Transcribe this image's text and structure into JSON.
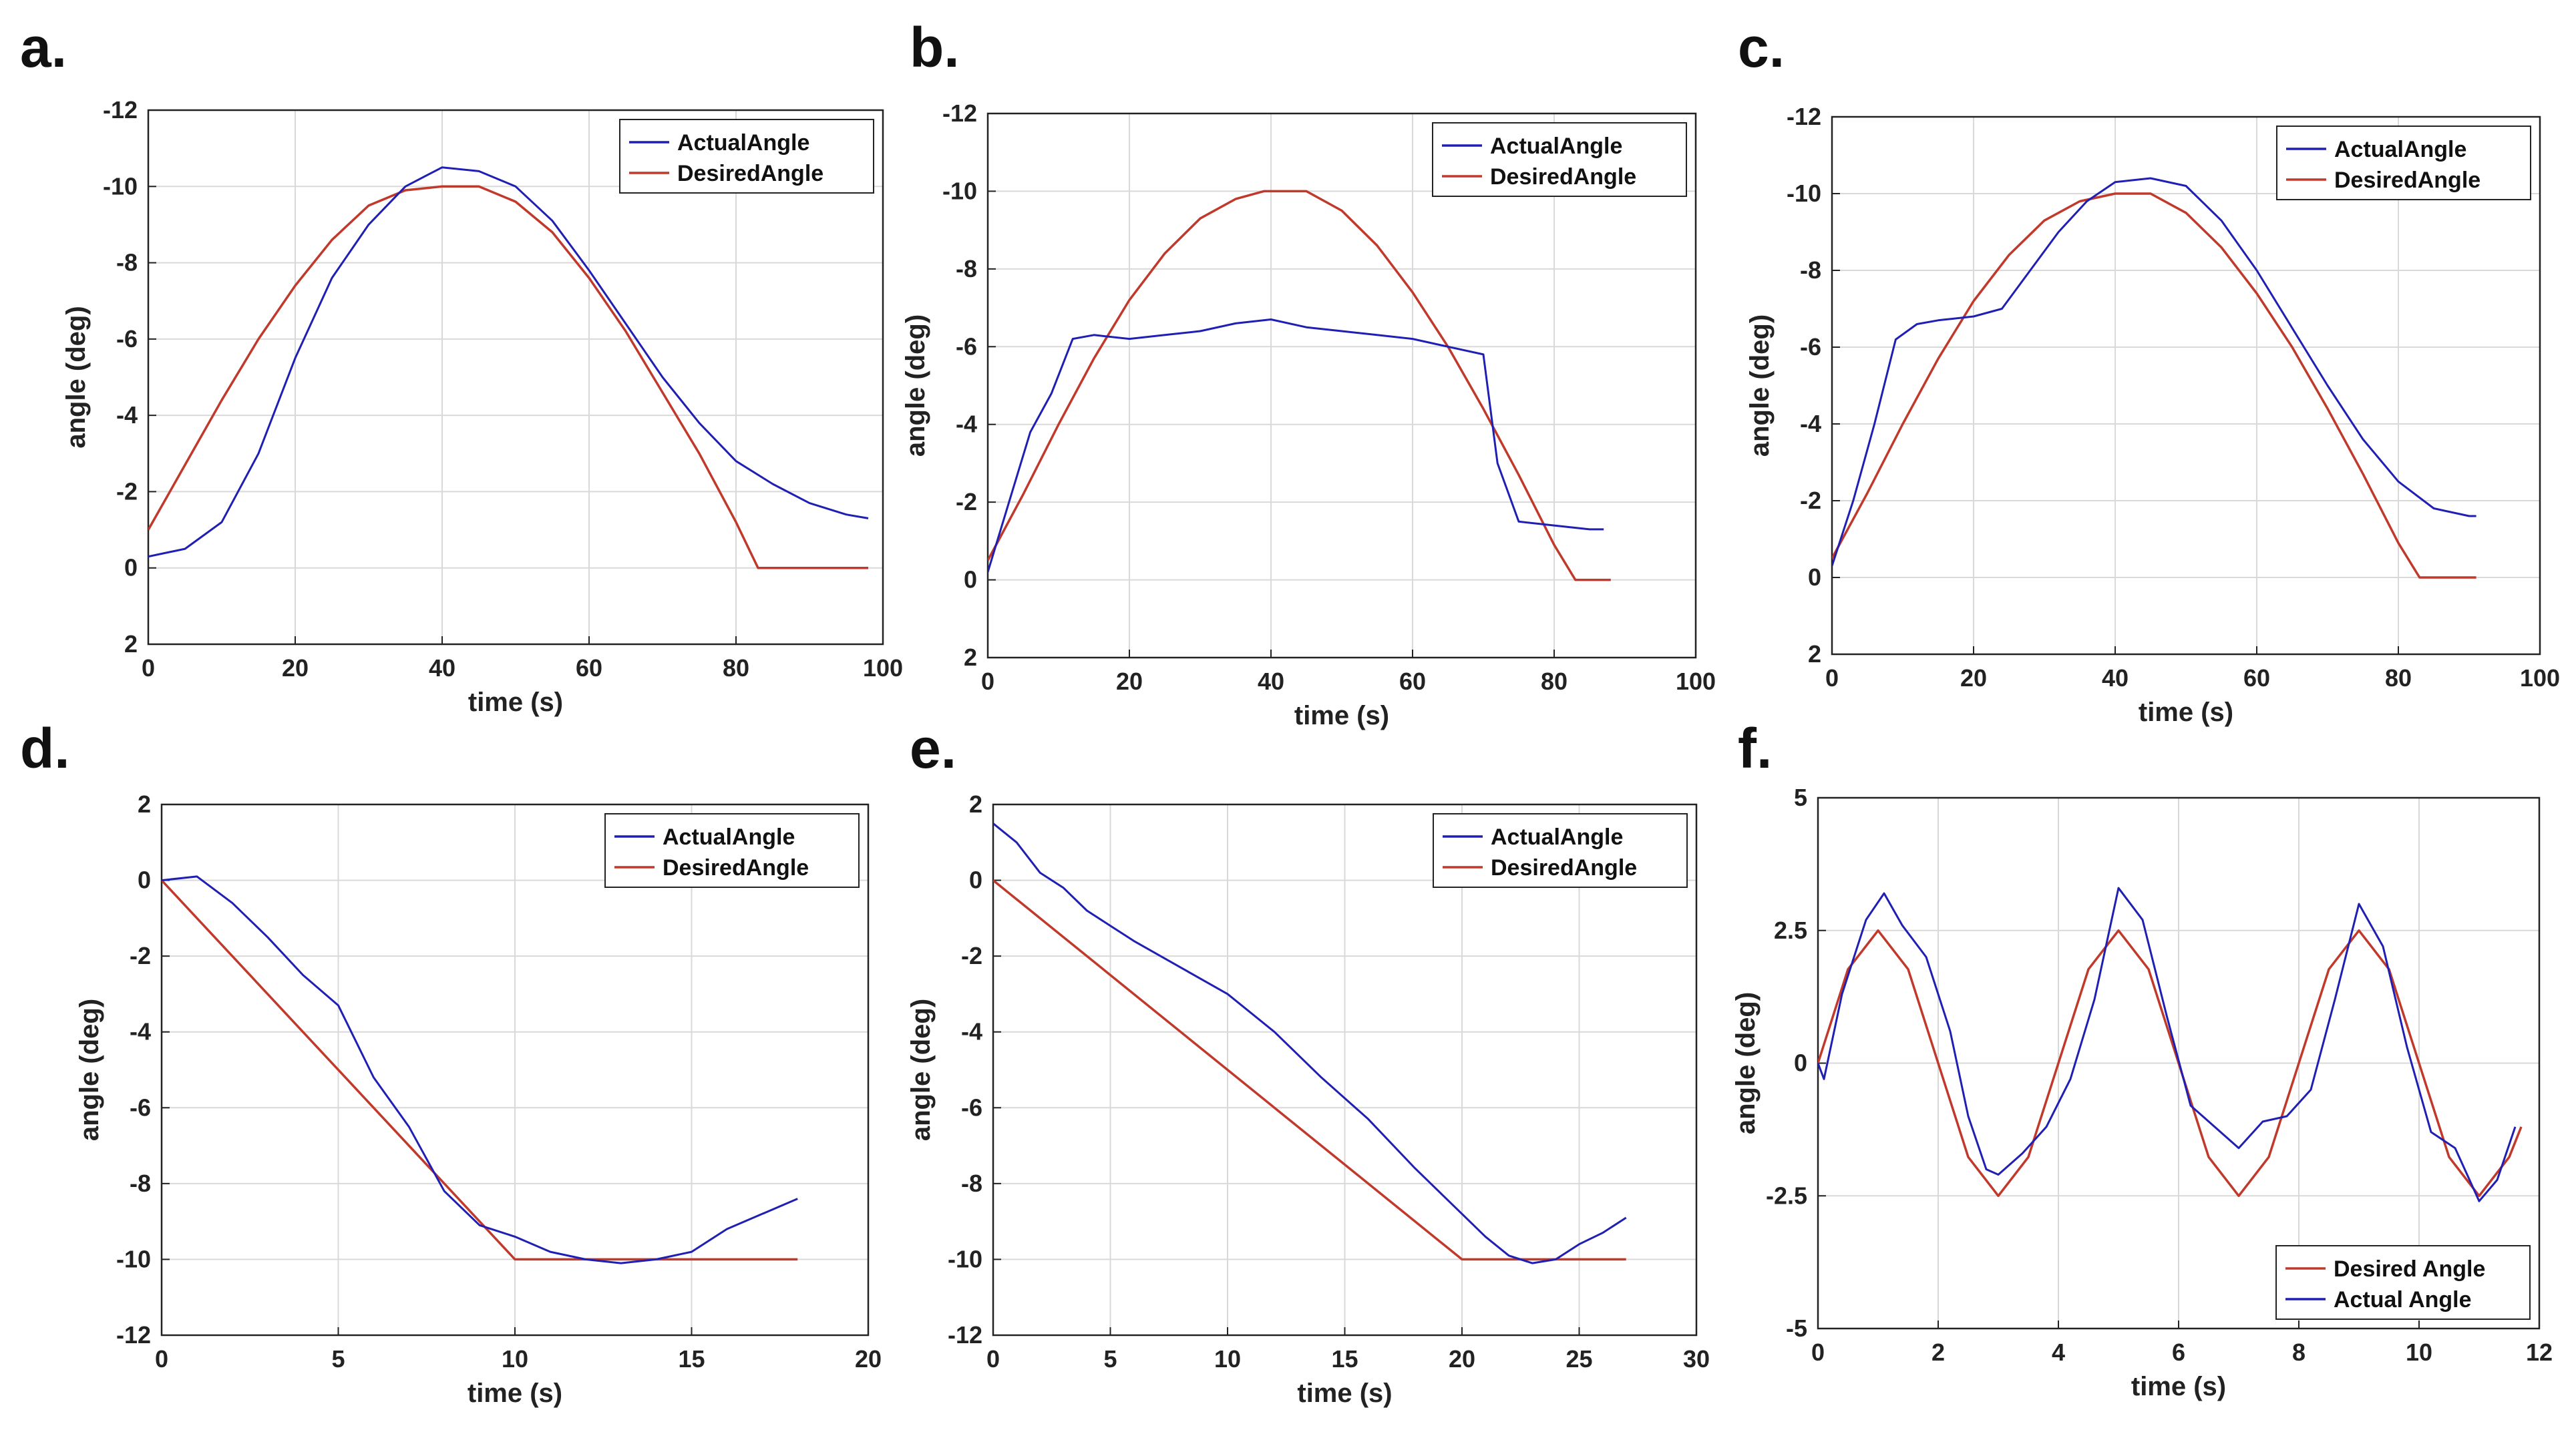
{
  "figure": {
    "colors": {
      "actual": "#1f1fb4",
      "desired": "#c0392b",
      "grid": "#d9d9d9",
      "axis": "#222222"
    }
  },
  "chart_data": [
    {
      "panel": "a.",
      "type": "line",
      "xlabel": "time (s)",
      "ylabel": "angle (deg)",
      "xlim": [
        0,
        100
      ],
      "ylim": [
        -12,
        2
      ],
      "yreversed": true,
      "xticks": [
        0,
        20,
        40,
        60,
        80,
        100
      ],
      "yticks": [
        -12,
        -10,
        -8,
        -6,
        -4,
        -2,
        0,
        2
      ],
      "grid": true,
      "legend_position": "top-right",
      "series": [
        {
          "name": "ActualAngle",
          "role": "actual",
          "x": [
            0,
            5,
            10,
            15,
            20,
            25,
            30,
            35,
            40,
            45,
            50,
            55,
            60,
            65,
            70,
            75,
            80,
            85,
            90,
            95,
            98
          ],
          "y": [
            -0.3,
            -0.5,
            -1.2,
            -3.0,
            -5.5,
            -7.6,
            -9.0,
            -10.0,
            -10.5,
            -10.4,
            -10.0,
            -9.1,
            -7.8,
            -6.4,
            -5.0,
            -3.8,
            -2.8,
            -2.2,
            -1.7,
            -1.4,
            -1.3
          ]
        },
        {
          "name": "DesiredAngle",
          "role": "desired",
          "x": [
            0,
            5,
            10,
            15,
            20,
            25,
            30,
            35,
            40,
            45,
            50,
            55,
            60,
            65,
            70,
            75,
            80,
            83,
            98
          ],
          "y": [
            -1.0,
            -2.7,
            -4.4,
            -6.0,
            -7.4,
            -8.6,
            -9.5,
            -9.9,
            -10.0,
            -10.0,
            -9.6,
            -8.8,
            -7.6,
            -6.2,
            -4.6,
            -3.0,
            -1.2,
            0,
            0
          ]
        }
      ]
    },
    {
      "panel": "b.",
      "type": "line",
      "xlabel": "time (s)",
      "ylabel": "angle (deg)",
      "xlim": [
        0,
        100
      ],
      "ylim": [
        -12,
        2
      ],
      "yreversed": true,
      "xticks": [
        0,
        20,
        40,
        60,
        80,
        100
      ],
      "yticks": [
        -12,
        -10,
        -8,
        -6,
        -4,
        -2,
        0,
        2
      ],
      "grid": true,
      "legend_position": "top-right",
      "series": [
        {
          "name": "ActualAngle",
          "role": "actual",
          "x": [
            0,
            3,
            6,
            9,
            12,
            15,
            20,
            25,
            30,
            35,
            40,
            45,
            50,
            55,
            60,
            65,
            70,
            72,
            75,
            80,
            85,
            87
          ],
          "y": [
            -0.2,
            -2.0,
            -3.8,
            -4.8,
            -6.2,
            -6.3,
            -6.2,
            -6.3,
            -6.4,
            -6.6,
            -6.7,
            -6.5,
            -6.4,
            -6.3,
            -6.2,
            -6.0,
            -5.8,
            -3.0,
            -1.5,
            -1.4,
            -1.3,
            -1.3
          ]
        },
        {
          "name": "DesiredAngle",
          "role": "desired",
          "x": [
            0,
            5,
            10,
            15,
            20,
            25,
            30,
            35,
            39,
            45,
            50,
            55,
            60,
            65,
            70,
            75,
            80,
            83,
            88
          ],
          "y": [
            -0.5,
            -2.2,
            -4.0,
            -5.7,
            -7.2,
            -8.4,
            -9.3,
            -9.8,
            -10.0,
            -10.0,
            -9.5,
            -8.6,
            -7.4,
            -6.0,
            -4.4,
            -2.7,
            -0.9,
            0,
            0
          ]
        }
      ]
    },
    {
      "panel": "c.",
      "type": "line",
      "xlabel": "time (s)",
      "ylabel": "angle (deg)",
      "xlim": [
        0,
        100
      ],
      "ylim": [
        -12,
        2
      ],
      "yreversed": true,
      "xticks": [
        0,
        20,
        40,
        60,
        80,
        100
      ],
      "yticks": [
        -12,
        -10,
        -8,
        -6,
        -4,
        -2,
        0,
        2
      ],
      "grid": true,
      "legend_position": "top-right",
      "series": [
        {
          "name": "ActualAngle",
          "role": "actual",
          "x": [
            0,
            3,
            6,
            9,
            12,
            15,
            20,
            24,
            28,
            32,
            36,
            40,
            45,
            50,
            55,
            60,
            65,
            70,
            75,
            80,
            85,
            90,
            91
          ],
          "y": [
            -0.3,
            -2.0,
            -4.0,
            -6.2,
            -6.6,
            -6.7,
            -6.8,
            -7.0,
            -8.0,
            -9.0,
            -9.8,
            -10.3,
            -10.4,
            -10.2,
            -9.3,
            -8.0,
            -6.5,
            -5.0,
            -3.6,
            -2.5,
            -1.8,
            -1.6,
            -1.6
          ]
        },
        {
          "name": "DesiredAngle",
          "role": "desired",
          "x": [
            0,
            5,
            10,
            15,
            20,
            25,
            30,
            35,
            40,
            45,
            50,
            55,
            60,
            65,
            70,
            75,
            80,
            83,
            91
          ],
          "y": [
            -0.5,
            -2.2,
            -4.0,
            -5.7,
            -7.2,
            -8.4,
            -9.3,
            -9.8,
            -10.0,
            -10.0,
            -9.5,
            -8.6,
            -7.4,
            -6.0,
            -4.4,
            -2.7,
            -0.9,
            0,
            0
          ]
        }
      ]
    },
    {
      "panel": "d.",
      "type": "line",
      "xlabel": "time (s)",
      "ylabel": "angle (deg)",
      "xlim": [
        0,
        20
      ],
      "ylim": [
        -12,
        2
      ],
      "yreversed": false,
      "xticks": [
        0,
        5,
        10,
        15,
        20
      ],
      "yticks": [
        -12,
        -10,
        -8,
        -6,
        -4,
        -2,
        0,
        2
      ],
      "grid": true,
      "legend_position": "top-right",
      "series": [
        {
          "name": "ActualAngle",
          "role": "actual",
          "x": [
            0,
            1,
            2,
            3,
            4,
            5,
            6,
            7,
            8,
            9,
            10,
            11,
            12,
            13,
            14,
            15,
            16,
            17,
            18
          ],
          "y": [
            0,
            0.1,
            -0.6,
            -1.5,
            -2.5,
            -3.3,
            -5.2,
            -6.5,
            -8.2,
            -9.1,
            -9.4,
            -9.8,
            -10.0,
            -10.1,
            -10.0,
            -9.8,
            -9.2,
            -8.8,
            -8.4
          ]
        },
        {
          "name": "DesiredAngle",
          "role": "desired",
          "x": [
            0,
            10,
            18
          ],
          "y": [
            0,
            -10,
            -10
          ]
        }
      ]
    },
    {
      "panel": "e.",
      "type": "line",
      "xlabel": "time (s)",
      "ylabel": "angle (deg)",
      "xlim": [
        0,
        30
      ],
      "ylim": [
        -12,
        2
      ],
      "yreversed": false,
      "xticks": [
        0,
        5,
        10,
        15,
        20,
        25,
        30
      ],
      "yticks": [
        -12,
        -10,
        -8,
        -6,
        -4,
        -2,
        0,
        2
      ],
      "grid": true,
      "legend_position": "top-right",
      "series": [
        {
          "name": "ActualAngle",
          "role": "actual",
          "x": [
            0,
            1,
            2,
            3,
            4,
            5,
            6,
            8,
            10,
            12,
            14,
            16,
            18,
            20,
            21,
            22,
            23,
            24,
            25,
            26,
            27
          ],
          "y": [
            1.5,
            1.0,
            0.2,
            -0.2,
            -0.8,
            -1.2,
            -1.6,
            -2.3,
            -3.0,
            -4.0,
            -5.2,
            -6.3,
            -7.6,
            -8.8,
            -9.4,
            -9.9,
            -10.1,
            -10.0,
            -9.6,
            -9.3,
            -8.9
          ]
        },
        {
          "name": "DesiredAngle",
          "role": "desired",
          "x": [
            0,
            20,
            27
          ],
          "y": [
            0,
            -10,
            -10
          ]
        }
      ]
    },
    {
      "panel": "f.",
      "type": "line",
      "xlabel": "time (s)",
      "ylabel": "angle (deg)",
      "xlim": [
        0,
        12
      ],
      "ylim": [
        -5,
        5
      ],
      "yreversed": false,
      "xticks": [
        0,
        2,
        4,
        6,
        8,
        10,
        12
      ],
      "ytick_labels": [
        "-5",
        "-2.5",
        "0",
        "2.5",
        "5"
      ],
      "yticks": [
        -5,
        -2.5,
        0,
        2.5,
        5
      ],
      "grid": true,
      "legend_position": "bottom-right",
      "series": [
        {
          "name": "Desired Angle",
          "role": "desired",
          "x": [
            0,
            0.5,
            1.0,
            1.5,
            2.0,
            2.5,
            3.0,
            3.5,
            4.0,
            4.5,
            5.0,
            5.5,
            6.0,
            6.5,
            7.0,
            7.5,
            8.0,
            8.5,
            9.0,
            9.5,
            10.0,
            10.5,
            11.0,
            11.5,
            11.7
          ],
          "y": [
            0,
            1.77,
            2.5,
            1.77,
            0,
            -1.77,
            -2.5,
            -1.77,
            0,
            1.77,
            2.5,
            1.77,
            0,
            -1.77,
            -2.5,
            -1.77,
            0,
            1.77,
            2.5,
            1.77,
            0,
            -1.77,
            -2.5,
            -1.77,
            -1.2
          ]
        },
        {
          "name": "Actual Angle",
          "role": "actual",
          "x": [
            0,
            0.1,
            0.4,
            0.8,
            1.1,
            1.4,
            1.8,
            2.2,
            2.5,
            2.8,
            3.0,
            3.4,
            3.8,
            4.2,
            4.6,
            5.0,
            5.4,
            5.8,
            6.2,
            6.6,
            7.0,
            7.4,
            7.8,
            8.2,
            8.6,
            9.0,
            9.4,
            9.8,
            10.2,
            10.6,
            11.0,
            11.3,
            11.6
          ],
          "y": [
            0,
            -0.3,
            1.3,
            2.7,
            3.2,
            2.6,
            2.0,
            0.6,
            -1.0,
            -2.0,
            -2.1,
            -1.7,
            -1.2,
            -0.3,
            1.2,
            3.3,
            2.7,
            0.9,
            -0.8,
            -1.2,
            -1.6,
            -1.1,
            -1.0,
            -0.5,
            1.2,
            3.0,
            2.2,
            0.3,
            -1.3,
            -1.6,
            -2.6,
            -2.2,
            -1.2
          ]
        }
      ]
    }
  ]
}
